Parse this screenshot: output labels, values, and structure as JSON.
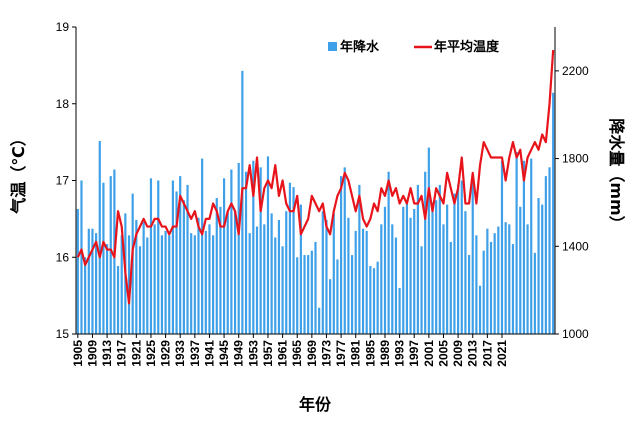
{
  "chart_data": {
    "type": "bar+line",
    "xlabel": "年份",
    "y_left_label": "气温（℃）",
    "y_right_label": "降水量（mm）",
    "y_left_lim": [
      15,
      19
    ],
    "y_left_ticks": [
      "15",
      "16",
      "17",
      "18",
      "19"
    ],
    "y_right_lim": [
      1000,
      2400
    ],
    "y_right_ticks": [
      "1000",
      "1400",
      "1800",
      "2200"
    ],
    "x_start": 1905,
    "x_ticks": [
      "1905",
      "1909",
      "1913",
      "1917",
      "1921",
      "1925",
      "1929",
      "1933",
      "1937",
      "1941",
      "1945",
      "1949",
      "1953",
      "1957",
      "1961",
      "1965",
      "1969",
      "1973",
      "1977",
      "1981",
      "1985",
      "1989",
      "1993",
      "1997",
      "2001",
      "2005",
      "2009",
      "2013",
      "2017",
      "2021"
    ],
    "legend_position": "top",
    "colors": {
      "precipitation": "#3ea0e8",
      "temperature": "#e8141c"
    },
    "series": [
      {
        "name": "年降水",
        "axis": "right",
        "values": [
          1570,
          1700,
          1350,
          1480,
          1480,
          1460,
          1880,
          1690,
          1410,
          1720,
          1750,
          1310,
          1450,
          1550,
          1450,
          1640,
          1520,
          1400,
          1510,
          1440,
          1710,
          1500,
          1700,
          1450,
          1470,
          1450,
          1700,
          1650,
          1720,
          1610,
          1680,
          1460,
          1450,
          1530,
          1800,
          1470,
          1500,
          1450,
          1620,
          1580,
          1710,
          1560,
          1750,
          1560,
          1780,
          2200,
          1740,
          1460,
          1790,
          1490,
          1760,
          1500,
          1810,
          1550,
          1440,
          1520,
          1400,
          1560,
          1690,
          1670,
          1350,
          1590,
          1360,
          1360,
          1380,
          1420,
          1120,
          1560,
          1520,
          1250,
          1550,
          1340,
          1720,
          1760,
          1530,
          1360,
          1470,
          1680,
          1480,
          1470,
          1310,
          1300,
          1330,
          1500,
          1580,
          1740,
          1500,
          1440,
          1210,
          1580,
          1600,
          1530,
          1570,
          1680,
          1400,
          1740,
          1850,
          1600,
          1610,
          1680,
          1500,
          1590,
          1420,
          1640,
          1680,
          1700,
          1560,
          1360,
          1720,
          1450,
          1220,
          1380,
          1480,
          1420,
          1460,
          1490,
          1790,
          1510,
          1500,
          1410,
          1830,
          1580,
          1790,
          1500,
          1800,
          1370,
          1620,
          1590,
          1720,
          1760,
          2100
        ]
      },
      {
        "name": "年平均温度",
        "axis": "left",
        "values": [
          16.0,
          16.1,
          15.9,
          16.0,
          16.1,
          16.2,
          16.0,
          16.2,
          16.1,
          16.1,
          16.0,
          16.6,
          16.4,
          15.8,
          15.4,
          16.1,
          16.3,
          16.4,
          16.5,
          16.4,
          16.4,
          16.5,
          16.5,
          16.4,
          16.4,
          16.3,
          16.4,
          16.4,
          16.8,
          16.7,
          16.6,
          16.5,
          16.6,
          16.4,
          16.3,
          16.5,
          16.5,
          16.7,
          16.6,
          16.4,
          16.4,
          16.6,
          16.7,
          16.6,
          16.3,
          16.9,
          16.9,
          17.2,
          16.8,
          17.3,
          16.6,
          16.9,
          17.0,
          16.9,
          17.2,
          16.8,
          17.0,
          16.7,
          16.6,
          16.6,
          16.8,
          16.3,
          16.4,
          16.5,
          16.8,
          16.7,
          16.6,
          16.7,
          16.4,
          16.3,
          16.6,
          16.8,
          16.9,
          17.1,
          17.0,
          16.8,
          16.6,
          16.8,
          16.5,
          16.4,
          16.5,
          16.7,
          16.6,
          16.9,
          16.8,
          17.0,
          16.8,
          16.9,
          16.7,
          16.8,
          16.7,
          16.9,
          16.7,
          16.7,
          16.8,
          16.5,
          16.9,
          16.6,
          16.9,
          16.8,
          16.7,
          17.1,
          16.9,
          16.7,
          16.9,
          17.3,
          16.7,
          16.7,
          17.1,
          16.7,
          17.2,
          17.5,
          17.4,
          17.3,
          17.3,
          17.3,
          17.3,
          17.0,
          17.3,
          17.5,
          17.3,
          17.4,
          17.0,
          17.3,
          17.4,
          17.5,
          17.4,
          17.6,
          17.5,
          18.0,
          18.7
        ]
      }
    ]
  }
}
